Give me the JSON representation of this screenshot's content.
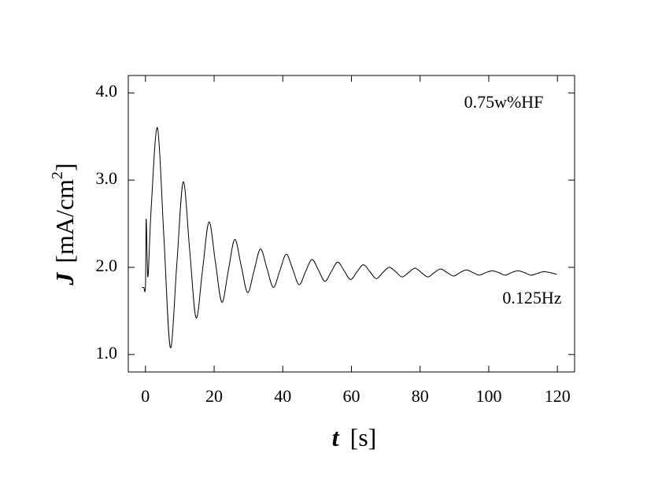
{
  "chart_data": {
    "type": "line",
    "x_label": [
      "t",
      "[s]"
    ],
    "y_label": [
      "J",
      "[mA/cm",
      "2",
      "]"
    ],
    "annotations": [
      "0.75w%HF",
      "0.125Hz"
    ],
    "color": "#000000",
    "xlim": [
      -5,
      125
    ],
    "xticks": [
      0,
      20,
      40,
      60,
      80,
      100,
      120
    ],
    "ylim": [
      0.8,
      4.2
    ],
    "yticks": [
      {
        "value": 1,
        "label": "1.0"
      },
      {
        "value": 2,
        "label": "2.0"
      },
      {
        "value": 3,
        "label": "3.0"
      },
      {
        "value": 4,
        "label": "4.0"
      }
    ],
    "x": [
      -1,
      -0.5,
      0,
      0.2,
      0.5,
      0.8,
      1.7,
      3.5,
      5.375,
      7.25,
      9.125,
      11,
      12.875,
      14.75,
      16.625,
      18.5,
      20.375,
      22.25,
      24.125,
      26,
      27.875,
      29.75,
      31.625,
      33.5,
      35.375,
      37.25,
      39.125,
      41,
      42.875,
      44.75,
      46.625,
      48.5,
      50.375,
      52.25,
      54.125,
      56,
      57.875,
      59.75,
      61.625,
      63.5,
      65.375,
      67.25,
      69.125,
      71,
      72.875,
      74.75,
      76.625,
      78.5,
      80.375,
      82.25,
      84.125,
      86,
      87.875,
      89.75,
      91.625,
      93.5,
      95.375,
      97.25,
      99.125,
      101,
      102.875,
      104.75,
      106.625,
      108.5,
      110.375,
      112.25,
      114.125,
      116,
      117.875,
      119.75
    ],
    "values": [
      1.77,
      1.77,
      1.78,
      2.55,
      2.1,
      1.92,
      2.7,
      3.6,
      2.34,
      1.08,
      2.03,
      2.98,
      2.2,
      1.42,
      1.97,
      2.52,
      2.06,
      1.6,
      1.96,
      2.32,
      2.02,
      1.71,
      1.96,
      2.21,
      1.99,
      1.77,
      1.96,
      2.15,
      1.98,
      1.8,
      1.95,
      2.09,
      1.97,
      1.84,
      1.95,
      2.06,
      1.96,
      1.86,
      1.95,
      2.03,
      1.95,
      1.87,
      1.94,
      2.0,
      1.95,
      1.89,
      1.94,
      1.99,
      1.94,
      1.89,
      1.94,
      1.98,
      1.94,
      1.9,
      1.94,
      1.97,
      1.94,
      1.91,
      1.94,
      1.96,
      1.94,
      1.91,
      1.94,
      1.96,
      1.94,
      1.91,
      1.93,
      1.95,
      1.94,
      1.92
    ]
  }
}
